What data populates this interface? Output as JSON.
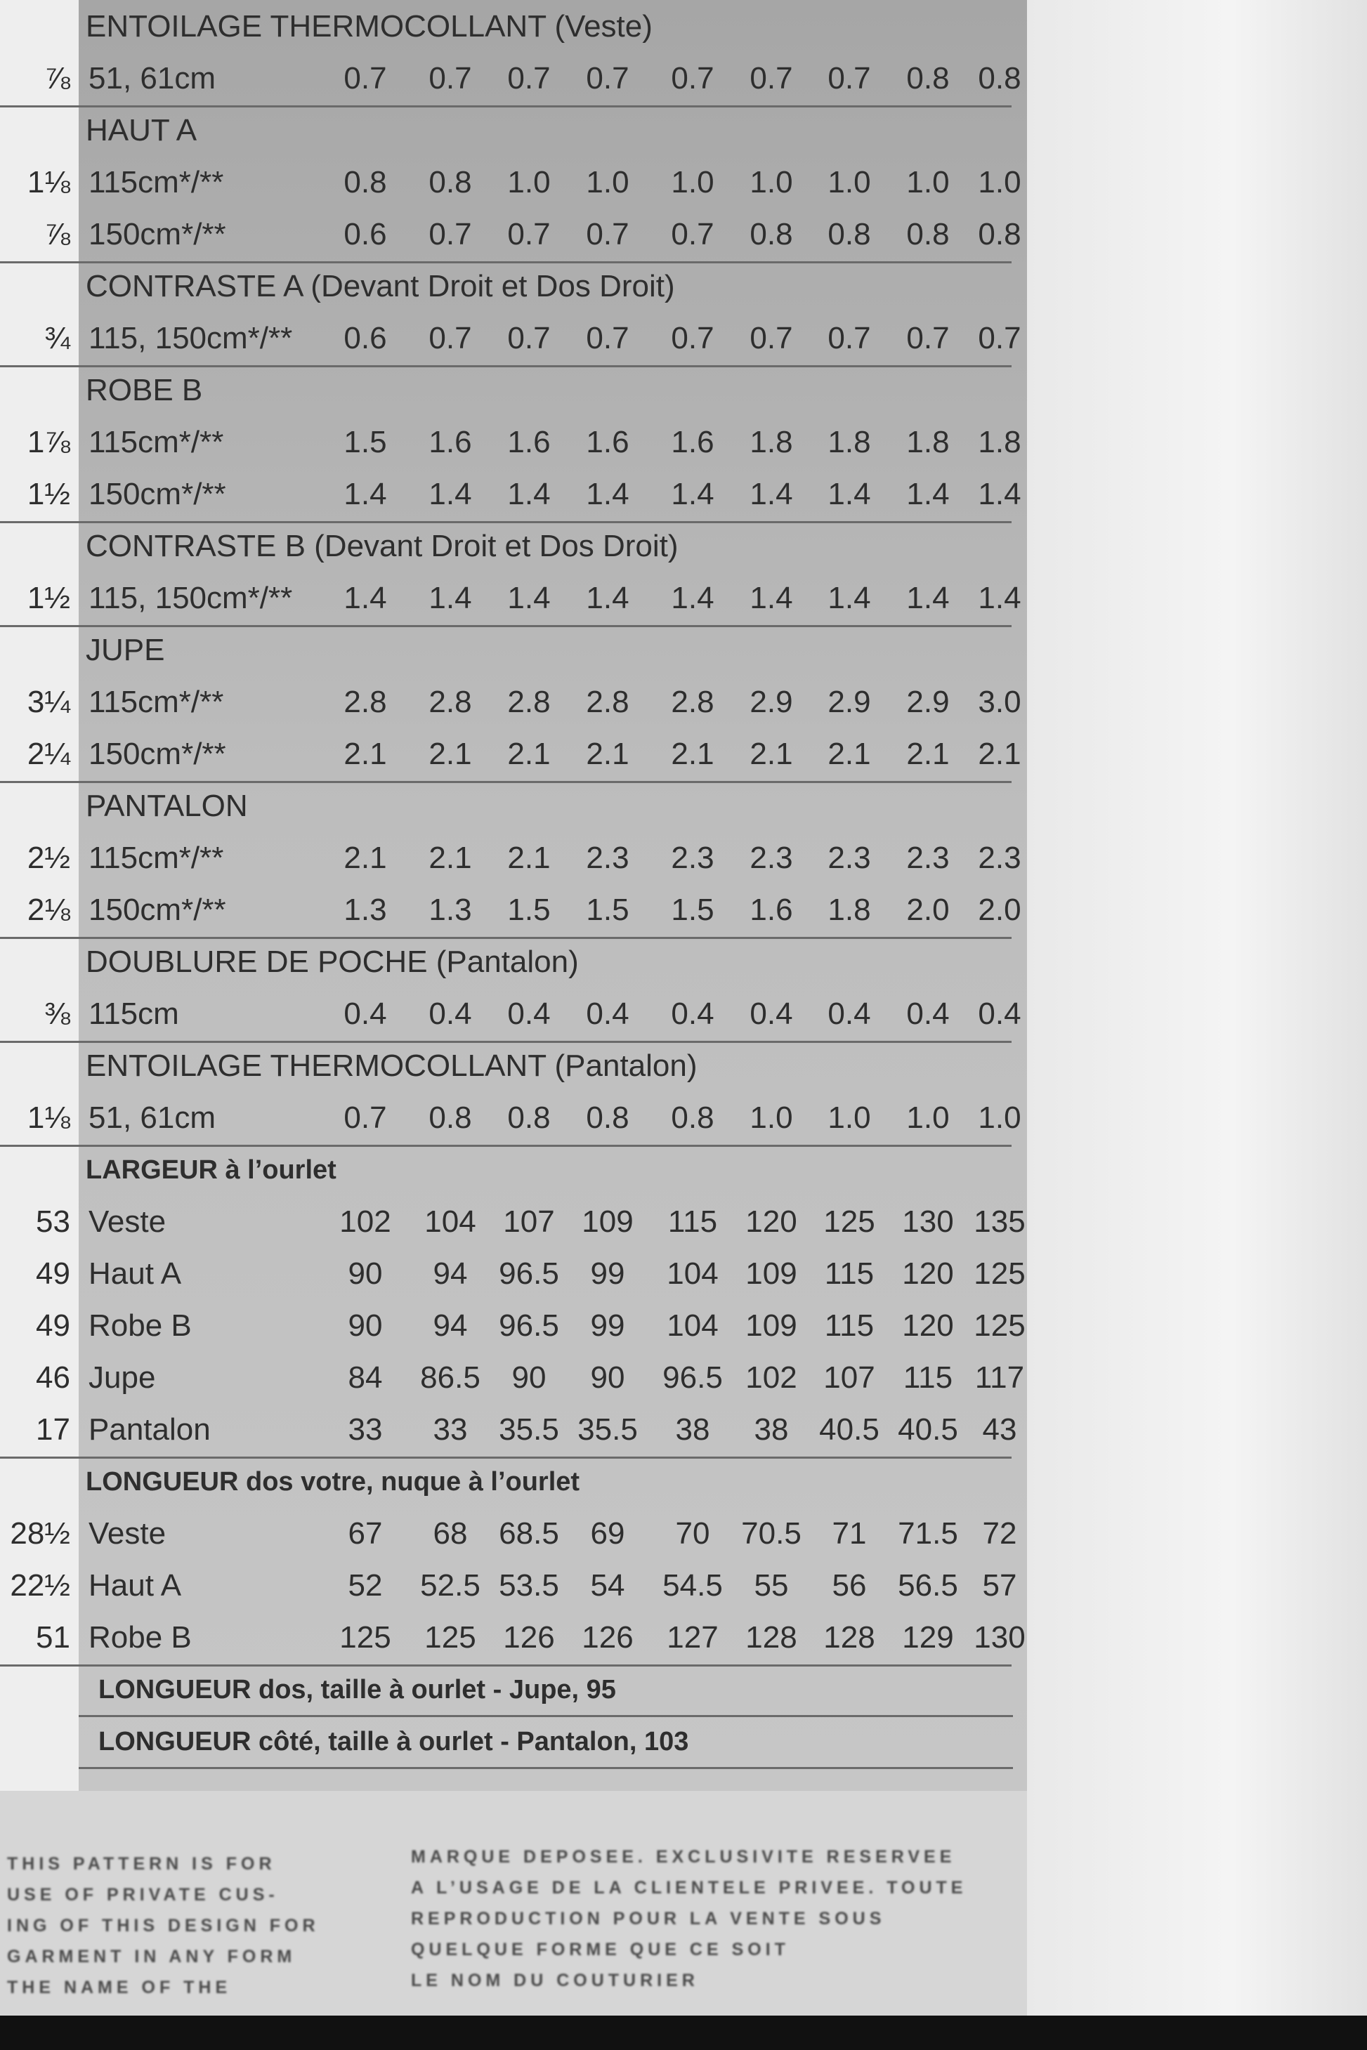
{
  "sections": [
    {
      "title": "ENTOILAGE THERMOCOLLANT (Veste)",
      "rows": [
        {
          "left": "⅞",
          "label": "51, 61cm",
          "values": [
            "0.7",
            "0.7",
            "0.7",
            "0.7",
            "0.7",
            "0.7",
            "0.7",
            "0.8",
            "0.8"
          ]
        }
      ]
    },
    {
      "title": "HAUT A",
      "rows": [
        {
          "left": "1⅛",
          "label": "115cm*/**",
          "values": [
            "0.8",
            "0.8",
            "1.0",
            "1.0",
            "1.0",
            "1.0",
            "1.0",
            "1.0",
            "1.0"
          ]
        },
        {
          "left": "⅞",
          "label": "150cm*/**",
          "values": [
            "0.6",
            "0.7",
            "0.7",
            "0.7",
            "0.7",
            "0.8",
            "0.8",
            "0.8",
            "0.8"
          ]
        }
      ]
    },
    {
      "title": "CONTRASTE A (Devant Droit et Dos Droit)",
      "rows": [
        {
          "left": "¾",
          "label": "115, 150cm*/**",
          "values": [
            "0.6",
            "0.7",
            "0.7",
            "0.7",
            "0.7",
            "0.7",
            "0.7",
            "0.7",
            "0.7"
          ]
        }
      ]
    },
    {
      "title": "ROBE B",
      "rows": [
        {
          "left": "1⅞",
          "label": "115cm*/**",
          "values": [
            "1.5",
            "1.6",
            "1.6",
            "1.6",
            "1.6",
            "1.8",
            "1.8",
            "1.8",
            "1.8"
          ]
        },
        {
          "left": "1½",
          "label": "150cm*/**",
          "values": [
            "1.4",
            "1.4",
            "1.4",
            "1.4",
            "1.4",
            "1.4",
            "1.4",
            "1.4",
            "1.4"
          ]
        }
      ]
    },
    {
      "title": "CONTRASTE B (Devant Droit et Dos Droit)",
      "rows": [
        {
          "left": "1½",
          "label": "115, 150cm*/**",
          "values": [
            "1.4",
            "1.4",
            "1.4",
            "1.4",
            "1.4",
            "1.4",
            "1.4",
            "1.4",
            "1.4"
          ]
        }
      ]
    },
    {
      "title": "JUPE",
      "rows": [
        {
          "left": "3¼",
          "label": "115cm*/**",
          "values": [
            "2.8",
            "2.8",
            "2.8",
            "2.8",
            "2.8",
            "2.9",
            "2.9",
            "2.9",
            "3.0"
          ]
        },
        {
          "left": "2¼",
          "label": "150cm*/**",
          "values": [
            "2.1",
            "2.1",
            "2.1",
            "2.1",
            "2.1",
            "2.1",
            "2.1",
            "2.1",
            "2.1"
          ]
        }
      ]
    },
    {
      "title": "PANTALON",
      "rows": [
        {
          "left": "2½",
          "label": "115cm*/**",
          "values": [
            "2.1",
            "2.1",
            "2.1",
            "2.3",
            "2.3",
            "2.3",
            "2.3",
            "2.3",
            "2.3"
          ]
        },
        {
          "left": "2⅛",
          "label": "150cm*/**",
          "values": [
            "1.3",
            "1.3",
            "1.5",
            "1.5",
            "1.5",
            "1.6",
            "1.8",
            "2.0",
            "2.0"
          ]
        }
      ]
    },
    {
      "title": "DOUBLURE DE POCHE (Pantalon)",
      "rows": [
        {
          "left": "⅜",
          "label": "115cm",
          "values": [
            "0.4",
            "0.4",
            "0.4",
            "0.4",
            "0.4",
            "0.4",
            "0.4",
            "0.4",
            "0.4"
          ]
        }
      ]
    },
    {
      "title": "ENTOILAGE THERMOCOLLANT (Pantalon)",
      "rows": [
        {
          "left": "1⅛",
          "label": "51, 61cm",
          "values": [
            "0.7",
            "0.8",
            "0.8",
            "0.8",
            "0.8",
            "1.0",
            "1.0",
            "1.0",
            "1.0"
          ]
        }
      ]
    },
    {
      "title": "LARGEUR à l’ourlet",
      "rows": [
        {
          "left": "53",
          "label": "Veste",
          "values": [
            "102",
            "104",
            "107",
            "109",
            "115",
            "120",
            "125",
            "130",
            "135"
          ]
        },
        {
          "left": "49",
          "label": "Haut A",
          "values": [
            "90",
            "94",
            "96.5",
            "99",
            "104",
            "109",
            "115",
            "120",
            "125"
          ]
        },
        {
          "left": "49",
          "label": "Robe B",
          "values": [
            "90",
            "94",
            "96.5",
            "99",
            "104",
            "109",
            "115",
            "120",
            "125"
          ]
        },
        {
          "left": "46",
          "label": "Jupe",
          "values": [
            "84",
            "86.5",
            "90",
            "90",
            "96.5",
            "102",
            "107",
            "115",
            "117"
          ]
        },
        {
          "left": "17",
          "label": "Pantalon",
          "values": [
            "33",
            "33",
            "35.5",
            "35.5",
            "38",
            "38",
            "40.5",
            "40.5",
            "43"
          ]
        }
      ]
    },
    {
      "title": "LONGUEUR dos votre, nuque à l’ourlet",
      "rows": [
        {
          "left": "28½",
          "label": "Veste",
          "values": [
            "67",
            "68",
            "68.5",
            "69",
            "70",
            "70.5",
            "71",
            "71.5",
            "72"
          ]
        },
        {
          "left": "22½",
          "label": "Haut A",
          "values": [
            "52",
            "52.5",
            "53.5",
            "54",
            "54.5",
            "55",
            "56",
            "56.5",
            "57"
          ]
        },
        {
          "left": "51",
          "label": "Robe B",
          "values": [
            "125",
            "125",
            "126",
            "126",
            "127",
            "128",
            "128",
            "129",
            "130"
          ]
        }
      ]
    }
  ],
  "notes": [
    "LONGUEUR dos, taille à ourlet - Jupe, 95",
    "LONGUEUR côté, taille à ourlet - Pantalon, 103"
  ],
  "footer": {
    "left": [
      "THIS PATTERN IS FOR",
      "USE OF PRIVATE CUS-",
      "ING OF THIS DESIGN FOR",
      "GARMENT IN ANY FORM",
      "THE NAME OF THE"
    ],
    "right": [
      "MARQUE DEPOSEE. EXCLUSIVITE RESERVEE",
      "A L’USAGE DE LA CLIENTELE PRIVEE. TOUTE",
      "REPRODUCTION POUR LA VENTE SOUS",
      "QUELQUE FORME QUE CE SOIT",
      "LE NOM DU COUTURIER"
    ]
  }
}
